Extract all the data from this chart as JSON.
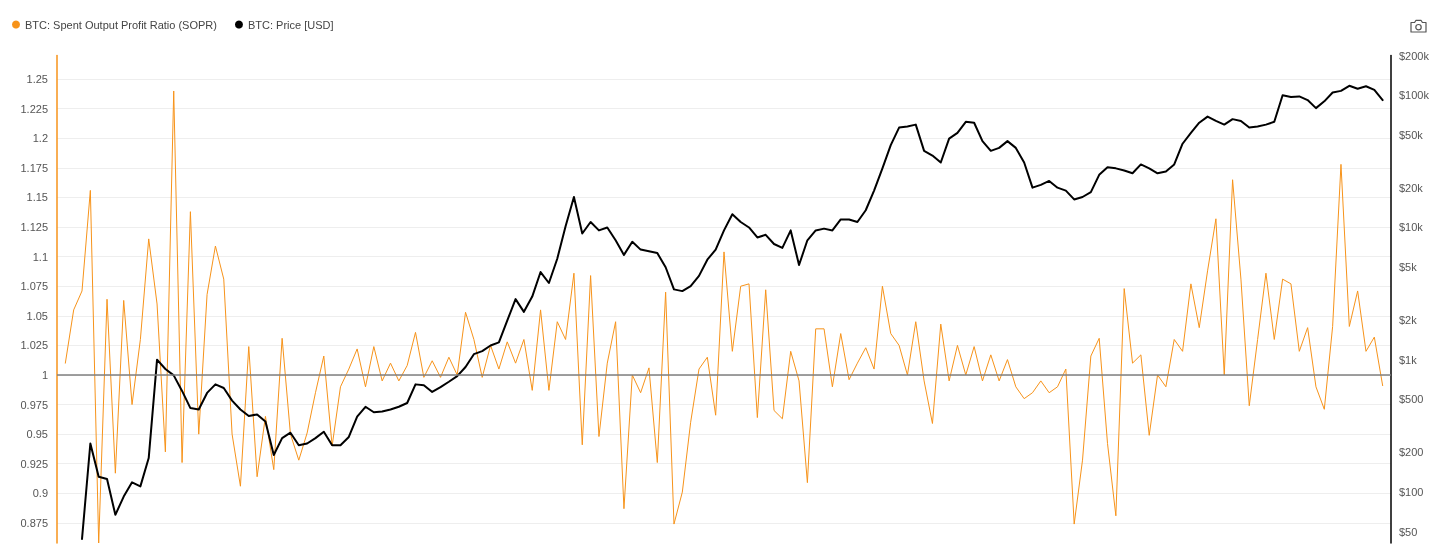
{
  "chart_data": {
    "type": "line",
    "categories": [
      null,
      null,
      null,
      null,
      null,
      null,
      null,
      null,
      null,
      null,
      null,
      null,
      null,
      null,
      null,
      null,
      null,
      null,
      null,
      null,
      null,
      null,
      null,
      null,
      null,
      null,
      null,
      null,
      null,
      null,
      null,
      null,
      null,
      null,
      null,
      null,
      null,
      null,
      null,
      null,
      null,
      null,
      null,
      null,
      null,
      null,
      null,
      null,
      null,
      null,
      null,
      null,
      null,
      null,
      null,
      null,
      null,
      null,
      null,
      null,
      null,
      null,
      null,
      null,
      null,
      null,
      null,
      null,
      null,
      null,
      null,
      null,
      null,
      null,
      null,
      null,
      null,
      null,
      null,
      null,
      null,
      null,
      null,
      null,
      null,
      null,
      null,
      null,
      null,
      null,
      null,
      null,
      null,
      null,
      null,
      null,
      null,
      null,
      null,
      null,
      null,
      null,
      null,
      null,
      null,
      null,
      null,
      null,
      null,
      null,
      null,
      null,
      null,
      null,
      null,
      null,
      null,
      null,
      null,
      null,
      null,
      null,
      null,
      null,
      null,
      null,
      null,
      null,
      null,
      null,
      null,
      null,
      null,
      null,
      null,
      null,
      null,
      null,
      null,
      null,
      null,
      null,
      null,
      null,
      null,
      null,
      null,
      null,
      null,
      null,
      null,
      null,
      null,
      null,
      null,
      null,
      null,
      null,
      null,
      null,
      null
    ],
    "series": [
      {
        "name": "BTC: Spent Output Profit Ratio (SOPR)",
        "color": "#f7931a",
        "axis": "y",
        "values": [
          null,
          1.01,
          1.055,
          1.071,
          1.156,
          0.858,
          1.064,
          0.917,
          1.063,
          0.975,
          1.03,
          1.115,
          1.06,
          0.935,
          1.24,
          0.926,
          1.138,
          0.95,
          1.068,
          1.109,
          1.081,
          0.95,
          0.906,
          1.024,
          0.914,
          0.965,
          0.92,
          1.031,
          0.95,
          0.928,
          0.951,
          0.985,
          1.016,
          0.94,
          0.99,
          1.005,
          1.022,
          0.99,
          1.024,
          0.995,
          1.01,
          0.995,
          1.008,
          1.036,
          0.998,
          1.012,
          0.998,
          1.015,
          1.0,
          1.053,
          1.03,
          0.998,
          1.025,
          1.005,
          1.028,
          1.01,
          1.03,
          0.987,
          1.055,
          0.987,
          1.045,
          1.03,
          1.086,
          0.941,
          1.084,
          0.948,
          1.01,
          1.045,
          0.887,
          1.0,
          0.985,
          1.006,
          0.926,
          1.07,
          0.874,
          0.901,
          0.96,
          1.005,
          1.015,
          0.966,
          1.104,
          1.02,
          1.075,
          1.077,
          0.964,
          1.072,
          0.97,
          0.963,
          1.02,
          0.995,
          0.909,
          1.039,
          1.039,
          0.99,
          1.035,
          0.996,
          1.01,
          1.023,
          1.005,
          1.075,
          1.035,
          1.025,
          1.0,
          1.045,
          0.995,
          0.959,
          1.043,
          0.995,
          1.025,
          1.0,
          1.024,
          0.995,
          1.017,
          0.995,
          1.013,
          0.99,
          0.98,
          0.985,
          0.995,
          0.985,
          0.99,
          1.005,
          0.874,
          0.928,
          1.016,
          1.031,
          0.942,
          0.881,
          1.073,
          1.01,
          1.017,
          0.949,
          1.0,
          0.99,
          1.03,
          1.02,
          1.077,
          1.04,
          1.088,
          1.132,
          1.0,
          1.165,
          1.081,
          0.974,
          1.03,
          1.086,
          1.03,
          1.081,
          1.077,
          1.02,
          1.04,
          0.99,
          0.971,
          1.041,
          1.178,
          1.041,
          1.071,
          1.02,
          1.032,
          0.991,
          null
        ]
      },
      {
        "name": "BTC: Price [USD]",
        "color": "#000000",
        "axis": "y2",
        "values": [
          null,
          null,
          null,
          44,
          232,
          130,
          125,
          67,
          92,
          118,
          110,
          180,
          1000,
          850,
          760,
          580,
          430,
          420,
          560,
          650,
          610,
          490,
          420,
          375,
          385,
          340,
          190,
          255,
          280,
          225,
          232,
          255,
          285,
          225,
          225,
          260,
          370,
          440,
          400,
          405,
          420,
          440,
          470,
          650,
          640,
          570,
          620,
          680,
          750,
          880,
          1100,
          1160,
          1280,
          1350,
          1970,
          2870,
          2300,
          3000,
          4600,
          3800,
          5800,
          10200,
          17000,
          9000,
          11000,
          9500,
          10000,
          8000,
          6200,
          7800,
          6800,
          6600,
          6400,
          5000,
          3400,
          3300,
          3600,
          4300,
          5700,
          6800,
          9500,
          12600,
          11000,
          10000,
          8400,
          8800,
          7500,
          7000,
          9500,
          5200,
          8000,
          9500,
          9800,
          9500,
          11500,
          11500,
          11000,
          13500,
          19000,
          28000,
          42000,
          57000,
          58000,
          60000,
          38000,
          35000,
          31000,
          47000,
          52000,
          63000,
          62000,
          45000,
          38000,
          40000,
          45000,
          40000,
          31000,
          20000,
          21000,
          22500,
          20000,
          19000,
          16300,
          17000,
          18500,
          25000,
          28500,
          28000,
          27000,
          25700,
          30000,
          28000,
          25700,
          26500,
          30000,
          43000,
          52000,
          62000,
          69000,
          64000,
          60000,
          66000,
          64000,
          57000,
          58000,
          60000,
          63000,
          100000,
          97000,
          98000,
          92000,
          80000,
          90000,
          105000,
          108000,
          118000,
          112000,
          117000,
          110000,
          92000,
          null
        ]
      }
    ],
    "ylim": [
      0.858,
      1.27
    ],
    "yticks": [
      0.875,
      0.9,
      0.925,
      0.95,
      0.975,
      1,
      1.025,
      1.05,
      1.075,
      1.1,
      1.125,
      1.15,
      1.175,
      1.2,
      1.225,
      1.25
    ],
    "y2lim": [
      41,
      200000
    ],
    "y2ticks": [
      {
        "value": 50,
        "label": "$50"
      },
      {
        "value": 100,
        "label": "$100"
      },
      {
        "value": 200,
        "label": "$200"
      },
      {
        "value": 500,
        "label": "$500"
      },
      {
        "value": 1000,
        "label": "$1k"
      },
      {
        "value": 2000,
        "label": "$2k"
      },
      {
        "value": 5000,
        "label": "$5k"
      },
      {
        "value": 10000,
        "label": "$10k"
      },
      {
        "value": 20000,
        "label": "$20k"
      },
      {
        "value": 50000,
        "label": "$50k"
      },
      {
        "value": 100000,
        "label": "$100k"
      },
      {
        "value": 200000,
        "label": "$200k"
      }
    ],
    "log": "y2",
    "ref_lines": [
      {
        "axis": "y",
        "value": 1,
        "color": "#7f7f7f"
      }
    ],
    "grid": "y",
    "legend": "top left"
  }
}
